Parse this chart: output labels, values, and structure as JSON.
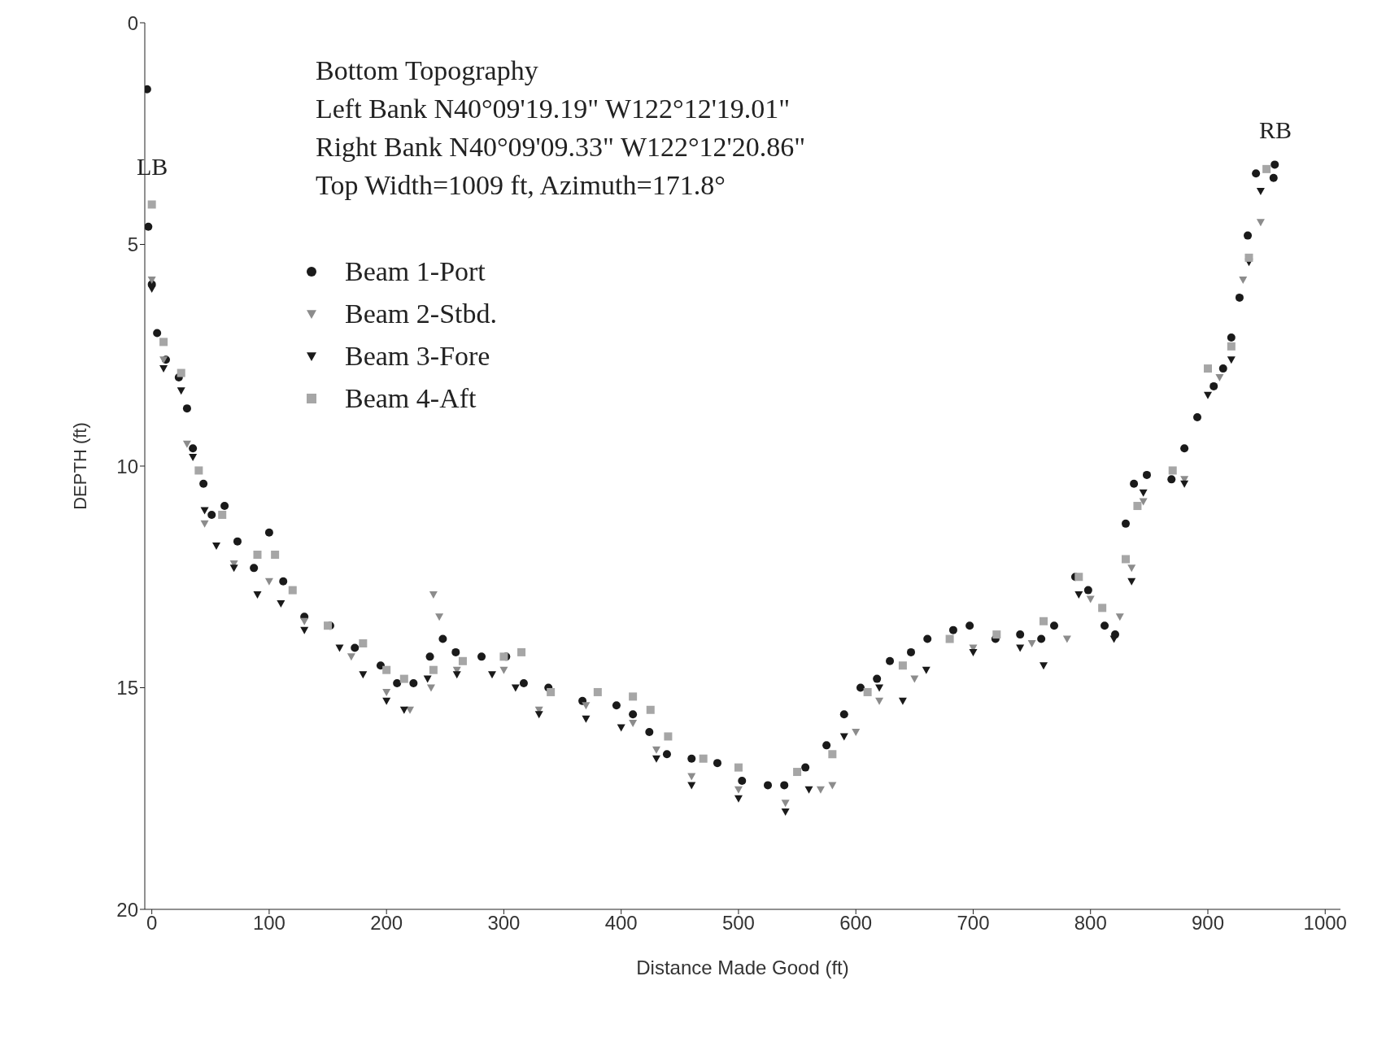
{
  "chart_data": {
    "type": "scatter",
    "title": "Bottom Topography",
    "xlabel": "Distance Made Good (ft)",
    "ylabel": "DEPTH (ft)",
    "annotations": [
      "Left Bank N40°09'19.19\" W122°12'19.01\"",
      "Right Bank N40°09'09.33\" W122°12'20.86\"",
      "Top Width=1009 ft, Azimuth=171.8°",
      "LB",
      "RB"
    ],
    "xlim": [
      -6,
      1013
    ],
    "xticks": [
      0,
      100,
      200,
      300,
      400,
      500,
      600,
      700,
      800,
      900,
      1000
    ],
    "ylim": [
      20,
      0
    ],
    "yticks": [
      0,
      5,
      10,
      15,
      20
    ],
    "grid": false,
    "legend": "top left",
    "series": [
      {
        "name": "Beam 1-Port",
        "color": "#1a1a1a",
        "marker": "circle",
        "x": [
          -4,
          -3,
          0,
          4.5,
          12,
          23,
          30,
          35,
          44,
          51,
          62,
          73,
          87,
          100,
          112,
          130,
          152,
          173,
          195,
          209,
          223,
          237,
          248,
          259,
          281,
          302,
          317,
          338,
          367,
          396,
          410,
          424,
          439,
          460,
          482,
          503,
          525,
          539,
          557,
          575,
          590,
          604,
          618,
          629,
          647,
          661,
          683,
          697,
          719,
          740,
          758,
          769,
          787,
          798,
          812,
          821,
          830,
          837,
          848,
          869,
          880,
          891,
          905,
          913,
          920,
          927,
          934,
          941,
          956,
          957
        ],
        "values": [
          1.5,
          4.6,
          5.9,
          7.0,
          7.6,
          8.0,
          8.7,
          9.6,
          10.4,
          11.1,
          10.9,
          11.7,
          12.3,
          11.5,
          12.6,
          13.4,
          13.6,
          14.1,
          14.5,
          14.9,
          14.9,
          14.3,
          13.9,
          14.2,
          14.3,
          14.3,
          14.9,
          15.0,
          15.3,
          15.4,
          15.6,
          16.0,
          16.5,
          16.6,
          16.7,
          17.1,
          17.2,
          17.2,
          16.8,
          16.3,
          15.6,
          15.0,
          14.8,
          14.4,
          14.2,
          13.9,
          13.7,
          13.6,
          13.9,
          13.8,
          13.9,
          13.6,
          12.5,
          12.8,
          13.6,
          13.8,
          11.3,
          10.4,
          10.2,
          10.3,
          9.6,
          8.9,
          8.2,
          7.8,
          7.1,
          6.2,
          4.8,
          3.4,
          3.5,
          3.2
        ]
      },
      {
        "name": "Beam 2-Stbd.",
        "color": "#8c8c8c",
        "marker": "triangle",
        "x": [
          0,
          10,
          30,
          45,
          70,
          100,
          130,
          170,
          200,
          220,
          238,
          240,
          245,
          260,
          300,
          330,
          370,
          410,
          430,
          460,
          500,
          540,
          570,
          580,
          600,
          620,
          650,
          700,
          750,
          780,
          800,
          825,
          835,
          845,
          880,
          910,
          930,
          945
        ],
        "values": [
          5.8,
          7.6,
          9.5,
          11.3,
          12.2,
          12.6,
          13.5,
          14.3,
          15.1,
          15.5,
          15.0,
          12.9,
          13.4,
          14.6,
          14.6,
          15.5,
          15.4,
          15.8,
          16.4,
          17.0,
          17.3,
          17.6,
          17.3,
          17.2,
          16.0,
          15.3,
          14.8,
          14.1,
          14.0,
          13.9,
          13.0,
          13.4,
          12.3,
          10.8,
          10.3,
          8.0,
          5.8,
          4.5
        ]
      },
      {
        "name": "Beam 3-Fore",
        "color": "#1a1a1a",
        "marker": "triangle",
        "x": [
          0,
          10,
          25,
          35,
          45,
          55,
          70,
          90,
          110,
          130,
          160,
          180,
          200,
          215,
          235,
          260,
          290,
          310,
          330,
          370,
          400,
          430,
          460,
          500,
          540,
          560,
          590,
          620,
          640,
          660,
          700,
          740,
          760,
          790,
          820,
          835,
          845,
          880,
          900,
          920,
          935,
          945
        ],
        "values": [
          6.0,
          7.8,
          8.3,
          9.8,
          11.0,
          11.8,
          12.3,
          12.9,
          13.1,
          13.7,
          14.1,
          14.7,
          15.3,
          15.5,
          14.8,
          14.7,
          14.7,
          15.0,
          15.6,
          15.7,
          15.9,
          16.6,
          17.2,
          17.5,
          17.8,
          17.3,
          16.1,
          15.0,
          15.3,
          14.6,
          14.2,
          14.1,
          14.5,
          12.9,
          13.9,
          12.6,
          10.6,
          10.4,
          8.4,
          7.6,
          5.4,
          3.8
        ]
      },
      {
        "name": "Beam 4-Aft",
        "color": "#a6a6a6",
        "marker": "square",
        "x": [
          0,
          10,
          25,
          40,
          60,
          90,
          105,
          120,
          150,
          180,
          200,
          215,
          240,
          265,
          300,
          315,
          340,
          380,
          410,
          425,
          440,
          470,
          500,
          550,
          580,
          610,
          640,
          680,
          720,
          760,
          790,
          810,
          830,
          840,
          870,
          900,
          920,
          935,
          950
        ],
        "values": [
          4.1,
          7.2,
          7.9,
          10.1,
          11.1,
          12.0,
          12.0,
          12.8,
          13.6,
          14.0,
          14.6,
          14.8,
          14.6,
          14.4,
          14.3,
          14.2,
          15.1,
          15.1,
          15.2,
          15.5,
          16.1,
          16.6,
          16.8,
          16.9,
          16.5,
          15.1,
          14.5,
          13.9,
          13.8,
          13.5,
          12.5,
          13.2,
          12.1,
          10.9,
          10.1,
          7.8,
          7.3,
          5.3,
          3.3
        ]
      }
    ]
  }
}
